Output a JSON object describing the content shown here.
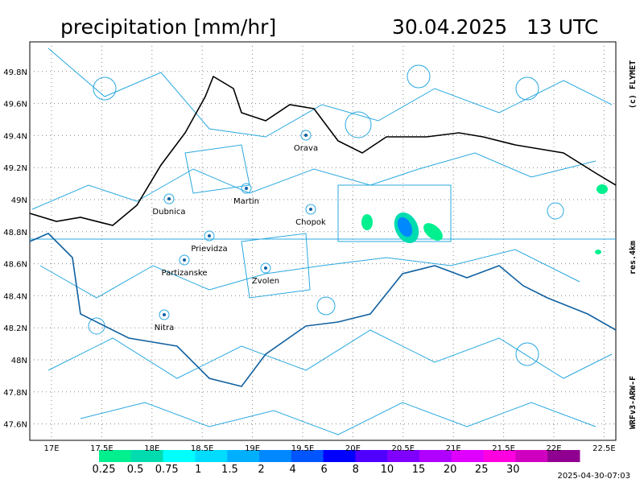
{
  "header": {
    "title": "precipitation [mm/hr]",
    "datetime": "30.04.2025   13 UTC"
  },
  "map": {
    "lon_ticks": [
      {
        "value": 17,
        "label": "17E"
      },
      {
        "value": 17.5,
        "label": "17.5E"
      },
      {
        "value": 18,
        "label": "18E"
      },
      {
        "value": 18.5,
        "label": "18.5E"
      },
      {
        "value": 19,
        "label": "19E"
      },
      {
        "value": 19.5,
        "label": "19.5E"
      },
      {
        "value": 20,
        "label": "20E"
      },
      {
        "value": 20.5,
        "label": "20.5E"
      },
      {
        "value": 21,
        "label": "21E"
      },
      {
        "value": 21.5,
        "label": "21.5E"
      },
      {
        "value": 22,
        "label": "22E"
      },
      {
        "value": 22.5,
        "label": "22.5E"
      }
    ],
    "lat_ticks": [
      {
        "value": 49.8,
        "label": "49.8N"
      },
      {
        "value": 49.6,
        "label": "49.6N"
      },
      {
        "value": 49.4,
        "label": "49.4N"
      },
      {
        "value": 49.2,
        "label": "49.2N"
      },
      {
        "value": 49,
        "label": "49N"
      },
      {
        "value": 48.8,
        "label": "48.8N"
      },
      {
        "value": 48.6,
        "label": "48.6N"
      },
      {
        "value": 48.4,
        "label": "48.4N"
      },
      {
        "value": 48.2,
        "label": "48.2N"
      },
      {
        "value": 48,
        "label": "48N"
      },
      {
        "value": 47.8,
        "label": "47.8N"
      },
      {
        "value": 47.6,
        "label": "47.6N"
      }
    ],
    "cities": [
      "Orava",
      "Dubnica",
      "Martin",
      "Chopok",
      "Prievidza",
      "Partizanske",
      "Zvolen",
      "Nitra"
    ]
  },
  "colorbar": {
    "levels": [
      0.25,
      0.5,
      0.75,
      1,
      1.5,
      2,
      4,
      6,
      8,
      10,
      15,
      20,
      25,
      30
    ],
    "colors": [
      "#00f090",
      "#00dcb0",
      "#00ffff",
      "#00dcff",
      "#00b0ff",
      "#0088ff",
      "#0055ff",
      "#0000ff",
      "#5000ff",
      "#8000ff",
      "#b000ff",
      "#e000ff",
      "#ff00e0",
      "#d000c0",
      "#900090"
    ]
  },
  "side": {
    "copyright": "(c) FLYMET",
    "resolution": "res.4km",
    "model": "WRFv3-ARW-F"
  },
  "footer": {
    "generated": "2025-04-30-07:03"
  }
}
